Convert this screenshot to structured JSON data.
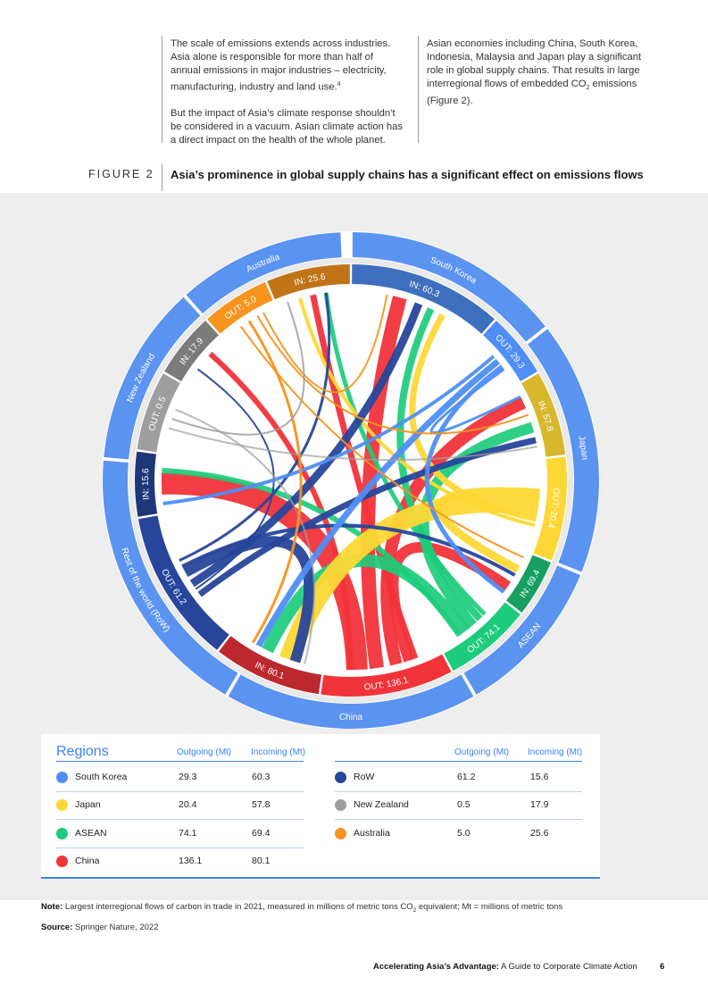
{
  "intro": {
    "left_p1": "The scale of emissions extends across industries. Asia alone is responsible for more than half of annual emissions in major industries – electricity, manufacturing, industry and land use.",
    "left_p1_sup": "4",
    "left_p2": "But the impact of Asia’s climate response shouldn’t be considered in a vacuum. Asian climate action has a direct impact on the health of the whole planet.",
    "right_p1_a": "Asian economies including China, South Korea, Indonesia, Malaysia and Japan play a significant role in global supply chains. That results in large interregional flows of embedded CO",
    "right_p1_sub": "2",
    "right_p1_b": " emissions (Figure 2)."
  },
  "figure": {
    "label": "FIGURE 2",
    "title": "Asia’s prominence in global supply chains has a significant effect on emissions flows"
  },
  "colors": {
    "South Korea": "#4f8ef5",
    "Japan": "#fdd835",
    "ASEAN": "#1ccc7c",
    "China": "#f1333a",
    "RoW": "#27469b",
    "New Zealand": "#9e9e9e",
    "Australia": "#f7941d",
    "outer_ring": "#5b93f0",
    "panel_bg": "#eeeeee"
  },
  "chart_data": {
    "type": "chord",
    "units": "Mt",
    "regions": [
      {
        "name": "South Korea",
        "label": "South Korea",
        "out_label": "OUT: 29.3",
        "in_label": "IN: 60.3",
        "outgoing": 29.3,
        "incoming": 60.3
      },
      {
        "name": "Japan",
        "label": "Japan",
        "out_label": "OUT: 20.4",
        "in_label": "IN: 57.8",
        "outgoing": 20.4,
        "incoming": 57.8
      },
      {
        "name": "ASEAN",
        "label": "ASEAN",
        "out_label": "OUT: 74.1",
        "in_label": "IN: 69.4",
        "outgoing": 74.1,
        "incoming": 69.4
      },
      {
        "name": "China",
        "label": "China",
        "out_label": "OUT: 136.1",
        "in_label": "IN: 80.1",
        "outgoing": 136.1,
        "incoming": 80.1
      },
      {
        "name": "RoW",
        "label": "Rest of the world (RoW)",
        "out_label": "OUT: 61.2",
        "in_label": "IN: 15.6",
        "outgoing": 61.2,
        "incoming": 15.6
      },
      {
        "name": "New Zealand",
        "label": "New Zealand",
        "out_label": "OUT: 0.5",
        "in_label": "IN: 17.9",
        "outgoing": 0.5,
        "incoming": 17.9
      },
      {
        "name": "Australia",
        "label": "Australia",
        "out_label": "OUT: 5.0",
        "in_label": "IN: 25.6",
        "outgoing": 5.0,
        "incoming": 25.6
      }
    ]
  },
  "legend": {
    "title": "Regions",
    "col_out": "Outgoing (Mt)",
    "col_in": "Incoming (Mt)",
    "left": [
      {
        "name": "South Korea",
        "out": "29.3",
        "in": "60.3"
      },
      {
        "name": "Japan",
        "out": "20.4",
        "in": "57.8"
      },
      {
        "name": "ASEAN",
        "out": "74.1",
        "in": "69.4"
      },
      {
        "name": "China",
        "out": "136.1",
        "in": "80.1"
      }
    ],
    "right": [
      {
        "name": "RoW",
        "out": "61.2",
        "in": "15.6"
      },
      {
        "name": "New Zealand",
        "out": "0.5",
        "in": "17.9"
      },
      {
        "name": "Australia",
        "out": "5.0",
        "in": "25.6"
      }
    ]
  },
  "notes": {
    "note_label": "Note:",
    "note_text_a": " Largest interregional flows of carbon in trade in 2021, measured in millions of metric tons CO",
    "note_sub": "2",
    "note_text_b": " equivalent; Mt = millions of metric tons",
    "source_label": "Source:",
    "source_text": " Springer Nature, 2022"
  },
  "footer": {
    "title_bold": "Accelerating Asia’s Advantage:",
    "title_rest": " A Guide to Corporate Climate Action",
    "page": "6"
  }
}
